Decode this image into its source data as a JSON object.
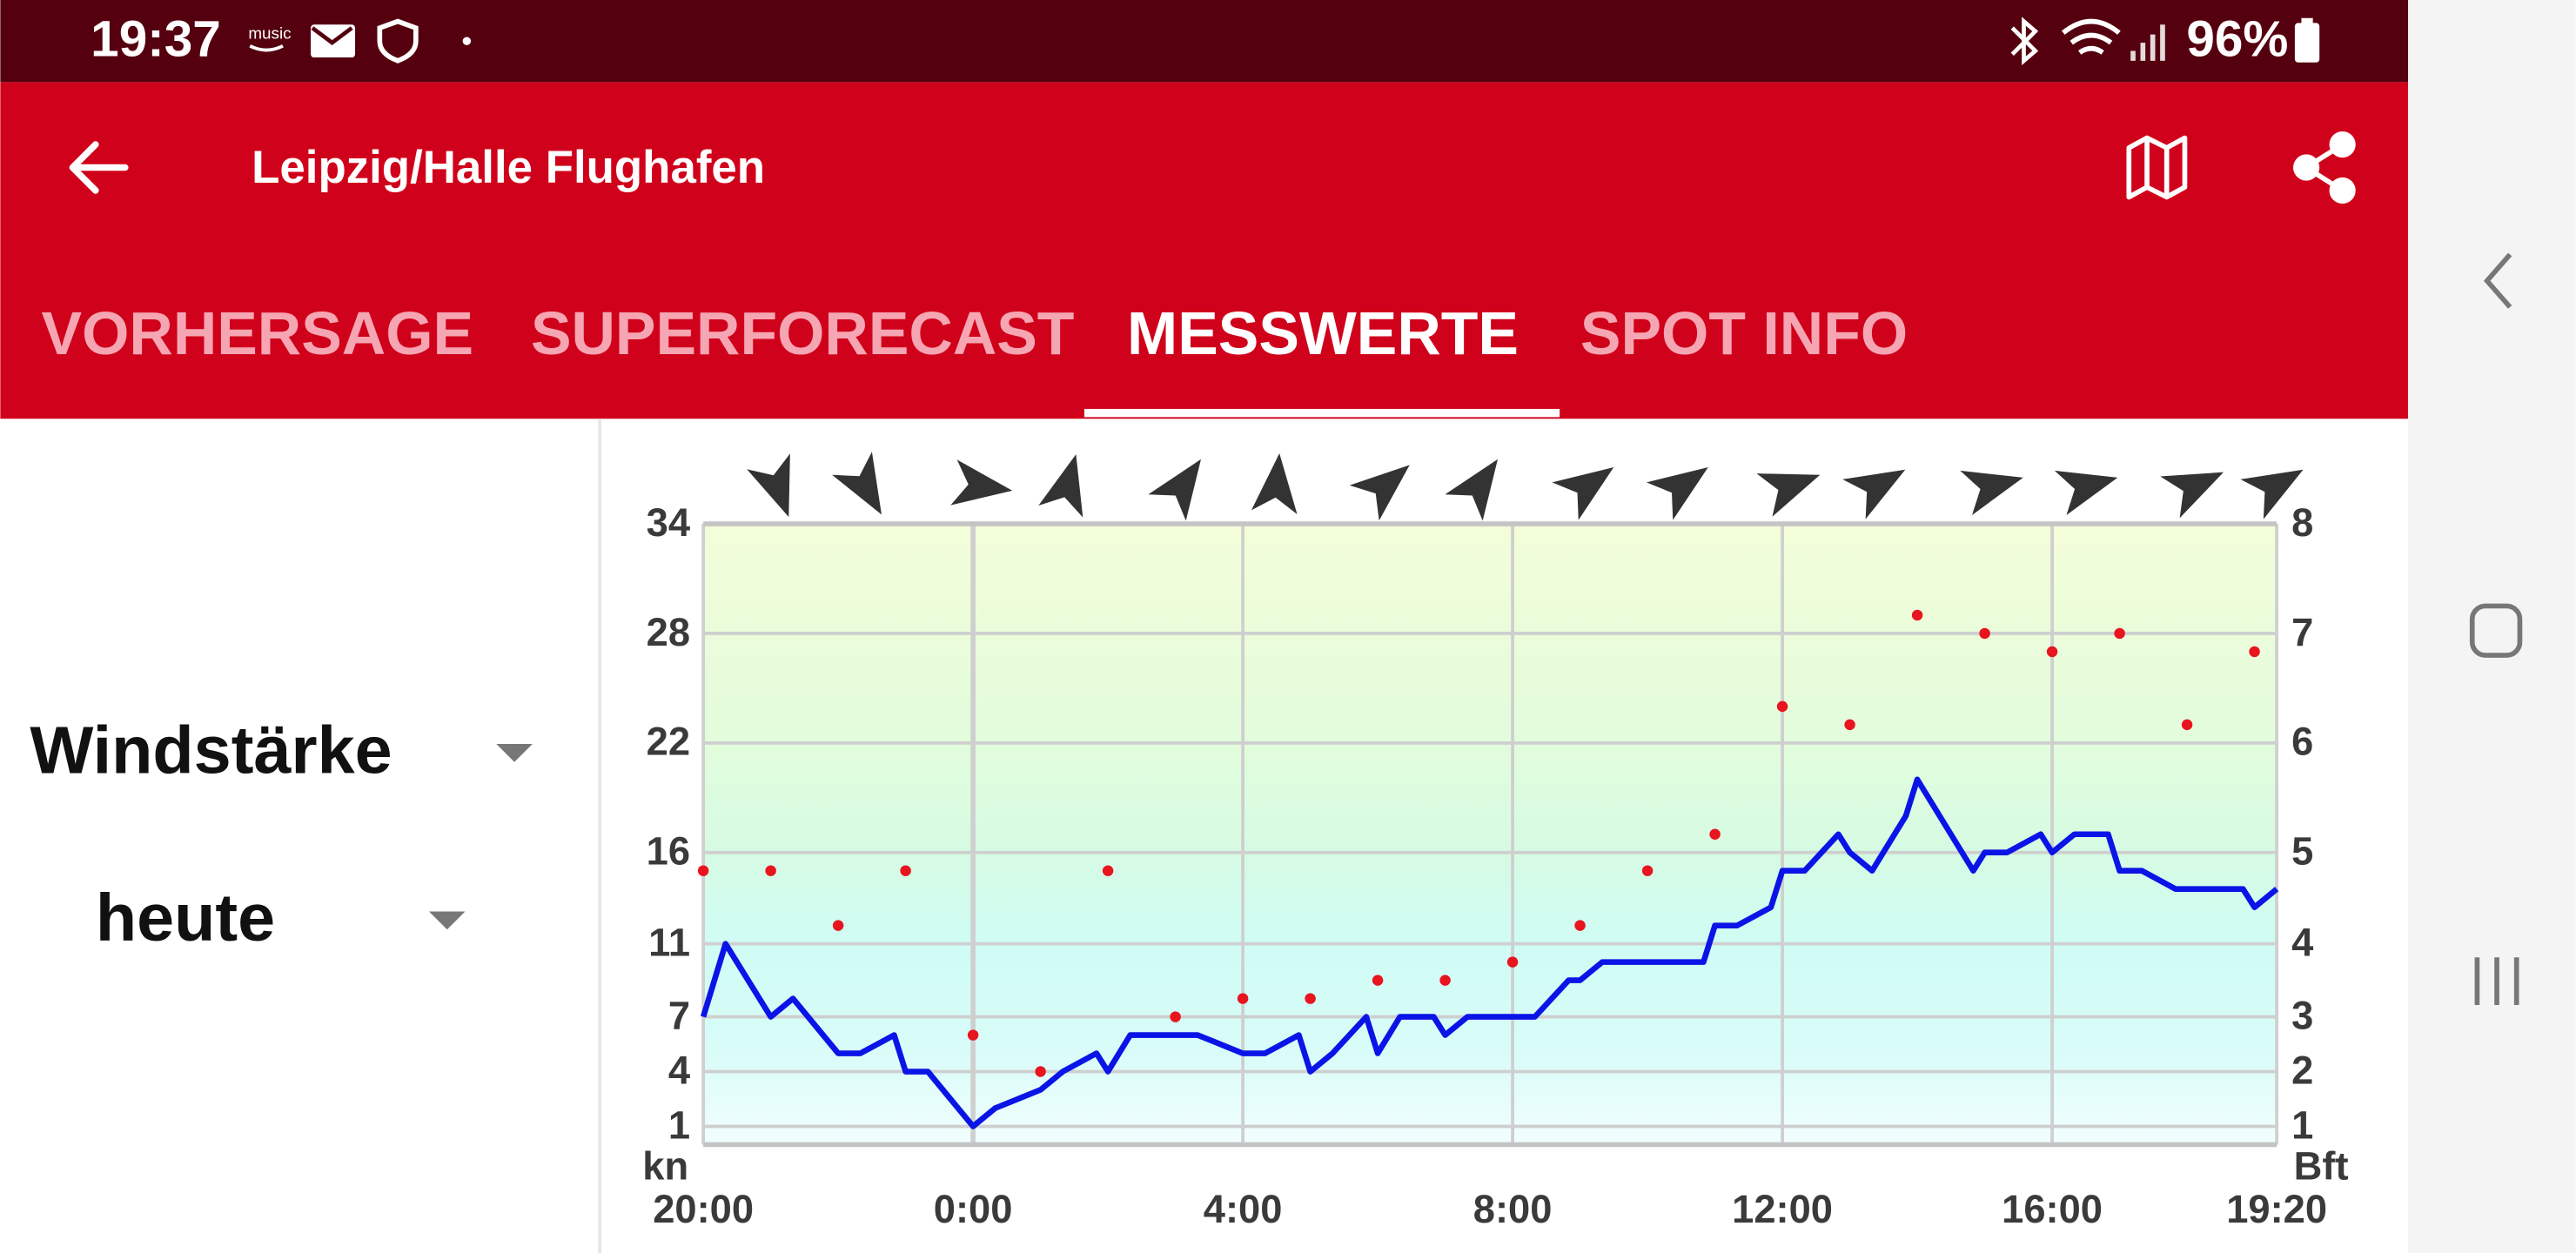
{
  "status_bar": {
    "time": "19:37",
    "notification_text": "music",
    "battery": "96%"
  },
  "toolbar": {
    "title": "Leipzig/Halle Flughafen"
  },
  "tabs": [
    {
      "label": "VORHERSAGE",
      "selected": false
    },
    {
      "label": "SUPERFORECAST",
      "selected": false
    },
    {
      "label": "MESSWERTE",
      "selected": true
    },
    {
      "label": "SPOT INFO",
      "selected": false
    }
  ],
  "selectors": {
    "parameter": "Windstärke",
    "period": "heute"
  },
  "chart_data": {
    "type": "line",
    "ylabel": "kn",
    "y2label": "Bft",
    "xlim": [
      0,
      23.33
    ],
    "xticks": [
      {
        "value": 0,
        "label": "20:00"
      },
      {
        "value": 4,
        "label": "0:00"
      },
      {
        "value": 8,
        "label": "4:00"
      },
      {
        "value": 12,
        "label": "8:00"
      },
      {
        "value": 16,
        "label": "12:00"
      },
      {
        "value": 20,
        "label": "16:00"
      },
      {
        "value": 23.33,
        "label": "19:20"
      }
    ],
    "ylim": [
      0,
      34
    ],
    "yticks": [
      1,
      4,
      7,
      11,
      16,
      22,
      28,
      34
    ],
    "y2lim": [
      0,
      8
    ],
    "y2ticks": [
      1,
      2,
      3,
      4,
      5,
      6,
      7,
      8
    ],
    "grid": true,
    "series": [
      {
        "type": "line",
        "color": "#0a14e6",
        "x": [
          0,
          0.33,
          1,
          1.33,
          2,
          2.33,
          2.83,
          3,
          3.33,
          4,
          4.33,
          5,
          5.33,
          5.83,
          6,
          6.33,
          7.33,
          8,
          8.33,
          8.83,
          9,
          9.33,
          9.83,
          10,
          10.33,
          10.83,
          11,
          11.33,
          12.33,
          12.83,
          13,
          13.33,
          14.83,
          15,
          15.33,
          15.83,
          16,
          16.33,
          16.83,
          17,
          17.33,
          17.83,
          18,
          18.83,
          19,
          19.33,
          19.83,
          20,
          20.33,
          20.83,
          21,
          21.33,
          21.83,
          22.83,
          23,
          23.33
        ],
        "values": [
          7,
          11,
          7,
          8,
          5,
          5,
          6,
          4,
          4,
          1,
          2,
          3,
          4,
          5,
          4,
          6,
          6,
          5,
          5,
          6,
          4,
          5,
          7,
          5,
          7,
          7,
          6,
          7,
          7,
          9,
          9,
          10,
          10,
          12,
          12,
          13,
          15,
          15,
          17,
          16,
          15,
          18,
          20,
          15,
          16,
          16,
          17,
          16,
          17,
          17,
          15,
          15,
          14,
          14,
          13,
          14
        ]
      },
      {
        "type": "scatter",
        "color": "#e8141e",
        "x": [
          0,
          1,
          2,
          3,
          4,
          5,
          6,
          7,
          8,
          9,
          10,
          11,
          12,
          13,
          14,
          15,
          16,
          17,
          18,
          19,
          20,
          21,
          22,
          23
        ],
        "values": [
          15,
          15,
          12,
          15,
          6,
          4,
          15,
          7,
          8,
          8,
          9,
          9,
          10,
          12,
          15,
          17,
          24,
          23,
          29,
          28,
          27,
          28,
          23,
          27
        ]
      }
    ],
    "wind_direction": {
      "color": "#333333",
      "x": [
        1.1,
        2.4,
        4.1,
        5.4,
        7.1,
        8.5,
        10.1,
        11.5,
        13.1,
        14.5,
        16.1,
        17.4,
        19.1,
        20.5,
        22.1,
        23.3
      ],
      "values": [
        70,
        60,
        8,
        -75,
        -55,
        -85,
        -40,
        -55,
        -35,
        -35,
        -20,
        -30,
        -15,
        -15,
        -25,
        -30
      ]
    }
  }
}
